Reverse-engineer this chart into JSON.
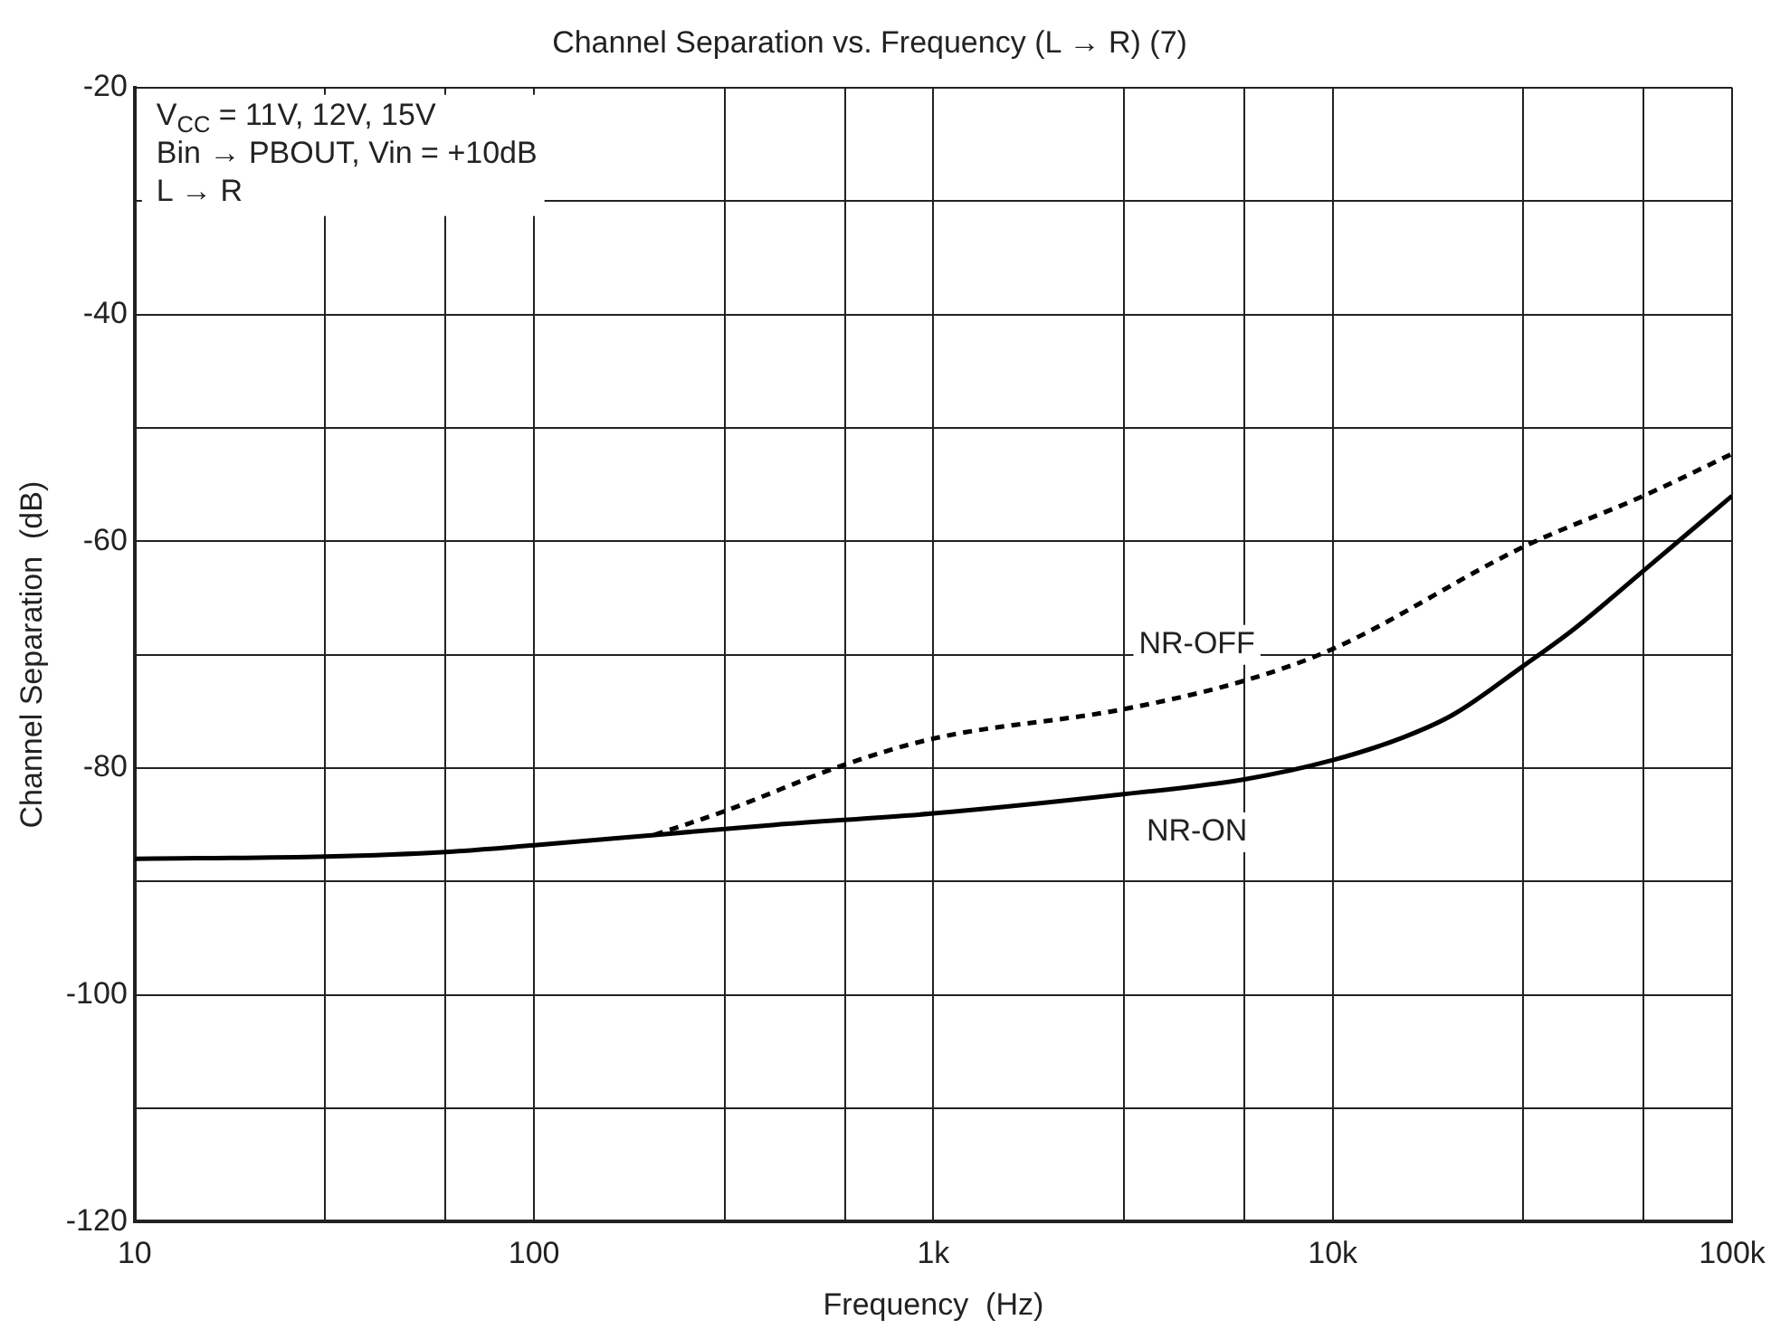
{
  "chart_data": {
    "type": "line",
    "title": "Channel Separation vs. Frequency (L → R) (7)",
    "xlabel": "Frequency  (Hz)",
    "ylabel": "Channel Separation  (dB)",
    "log": "x",
    "grid": true,
    "marker": "none",
    "xlim": [
      10,
      100000
    ],
    "ylim": [
      -120,
      -20
    ],
    "xticks": [
      10,
      {
        "value": 30,
        "label": null
      },
      {
        "value": 60,
        "label": null
      },
      100,
      {
        "value": 300,
        "label": null
      },
      {
        "value": 600,
        "label": null
      },
      {
        "value": 1000,
        "label": "1k"
      },
      {
        "value": 3000,
        "label": null
      },
      {
        "value": 6000,
        "label": null
      },
      {
        "value": 10000,
        "label": "10k"
      },
      {
        "value": 30000,
        "label": null
      },
      {
        "value": 60000,
        "label": null
      },
      {
        "value": 100000,
        "label": "100k"
      }
    ],
    "yticks": [
      -120,
      {
        "value": -110,
        "label": null
      },
      -100,
      {
        "value": -90,
        "label": null
      },
      -80,
      {
        "value": -70,
        "label": null
      },
      -60,
      {
        "value": -50,
        "label": null
      },
      -40,
      {
        "value": -30,
        "label": null
      },
      -20
    ],
    "series": [
      {
        "name": "NR-ON",
        "color": "#000000",
        "line_style": "solid",
        "x": [
          10,
          30,
          60,
          100,
          200,
          400,
          1000,
          3000,
          6000,
          10000,
          15000,
          20000,
          30000,
          40000,
          60000,
          100000
        ],
        "values": [
          -88,
          -87.8,
          -87.4,
          -86.8,
          -85.9,
          -85,
          -84,
          -82.3,
          -81,
          -79.3,
          -77.3,
          -75.3,
          -71,
          -67.8,
          -62.6,
          -56
        ]
      },
      {
        "name": "NR-OFF",
        "color": "#000000",
        "line_style": "dashed",
        "x": [
          200,
          300,
          600,
          1000,
          3000,
          6000,
          10000,
          30000,
          60000,
          100000
        ],
        "values": [
          -85.9,
          -83.8,
          -79.7,
          -77.4,
          -74.8,
          -72.3,
          -69.5,
          -60.5,
          -56,
          -52.3
        ]
      }
    ],
    "annotations": [
      "V$_{CC}$ = 11V, 12V, 15V",
      "Bin → PBOUT, Vin = +10dB",
      "L → R"
    ]
  }
}
